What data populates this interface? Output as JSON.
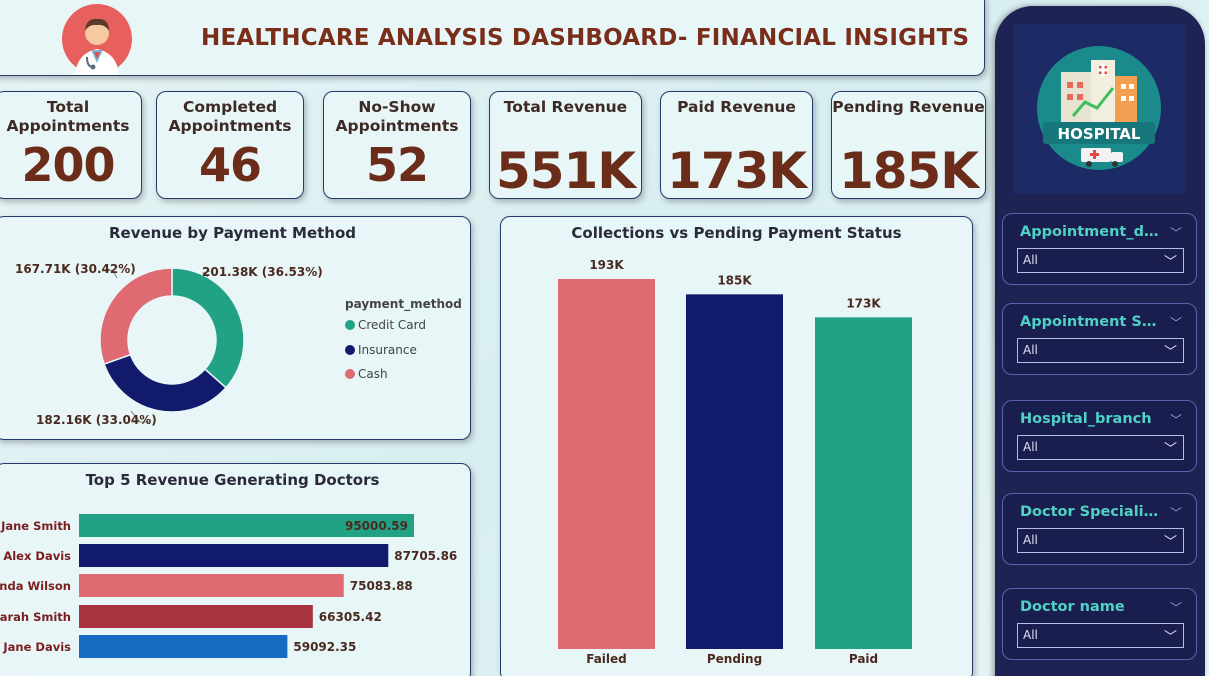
{
  "header": {
    "title": "HEALTHCARE ANALYSIS DASHBOARD- FINANCIAL INSIGHTS",
    "logo_icon": "doctor-icon"
  },
  "kpis": [
    {
      "label_lines": [
        "Total",
        "Appointments"
      ],
      "value": "200"
    },
    {
      "label_lines": [
        "Completed",
        "Appointments"
      ],
      "value": "46"
    },
    {
      "label_lines": [
        "No-Show",
        "Appointments"
      ],
      "value": "52"
    },
    {
      "label_lines": [
        "Total Revenue"
      ],
      "value": "551K"
    },
    {
      "label_lines": [
        "Paid Revenue"
      ],
      "value": "173K"
    },
    {
      "label_lines": [
        "Pending Revenue"
      ],
      "value": "185K"
    }
  ],
  "donut": {
    "title": "Revenue by Payment Method",
    "legend_title": "payment_method",
    "legend": [
      "Credit Card",
      "Insurance",
      "Cash"
    ],
    "labels": {
      "credit_card": "201.38K (36.53%)",
      "insurance": "182.16K (33.04%)",
      "cash": "167.71K (30.42%)"
    }
  },
  "columns": {
    "title": "Collections vs Pending Payment Status",
    "value_labels": [
      "193K",
      "185K",
      "173K"
    ],
    "categories": [
      "Failed",
      "Pending",
      "Paid"
    ]
  },
  "doctors": {
    "title": "Top 5 Revenue Generating Doctors",
    "names": [
      "Jane Smith",
      "Alex Davis",
      "Linda Wilson",
      "Sarah Smith",
      "Jane Davis"
    ],
    "value_labels": [
      "95000.59",
      "87705.86",
      "75083.88",
      "66305.42",
      "59092.35"
    ]
  },
  "sidebar": {
    "hospital_logo_text": "HOSPITAL",
    "slicers": [
      {
        "title": "Appointment_date",
        "value": "All"
      },
      {
        "title": "Appointment Sta...",
        "value": "All"
      },
      {
        "title": "Hospital_branch",
        "value": "All"
      },
      {
        "title": "Doctor Specializ...",
        "value": "All"
      },
      {
        "title": "Doctor name",
        "value": "All"
      }
    ]
  },
  "colors": {
    "teal": "#22a285",
    "navy": "#121a6b",
    "pink": "#e06a72",
    "maroon": "#a8323d",
    "blue": "#176bc2",
    "title_brown": "#7a2e1a"
  },
  "chart_data": [
    {
      "type": "pie",
      "title": "Revenue by Payment Method",
      "categories": [
        "Credit Card",
        "Insurance",
        "Cash"
      ],
      "values": [
        201.38,
        182.16,
        167.71
      ],
      "percentages": [
        36.53,
        33.04,
        30.42
      ],
      "unit": "K",
      "legend": "right"
    },
    {
      "type": "bar",
      "title": "Collections vs Pending Payment Status",
      "categories": [
        "Failed",
        "Pending",
        "Paid"
      ],
      "values": [
        193,
        185,
        173
      ],
      "unit": "K",
      "colors": [
        "#e06a72",
        "#121a6b",
        "#22a285"
      ]
    },
    {
      "type": "bar",
      "orientation": "horizontal",
      "title": "Top 5 Revenue Generating Doctors",
      "categories": [
        "Jane Smith",
        "Alex Davis",
        "Linda Wilson",
        "Sarah Smith",
        "Jane Davis"
      ],
      "values": [
        95000.59,
        87705.86,
        75083.88,
        66305.42,
        59092.35
      ],
      "colors": [
        "#22a285",
        "#121a6b",
        "#e06a72",
        "#a8323d",
        "#176bc2"
      ]
    }
  ]
}
